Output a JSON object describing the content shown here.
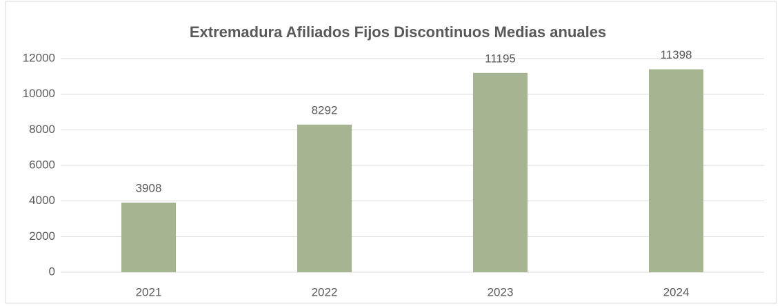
{
  "chart_data": {
    "type": "bar",
    "title": "Extremadura Afiliados Fijos Discontinuos Medias anuales",
    "categories": [
      "2021",
      "2022",
      "2023",
      "2024"
    ],
    "values": [
      3908,
      8292,
      11195,
      11398
    ],
    "color": "#a5b592",
    "ylim": [
      0,
      12000
    ],
    "yticks": [
      0,
      2000,
      4000,
      6000,
      8000,
      10000,
      12000
    ],
    "grid": true
  }
}
